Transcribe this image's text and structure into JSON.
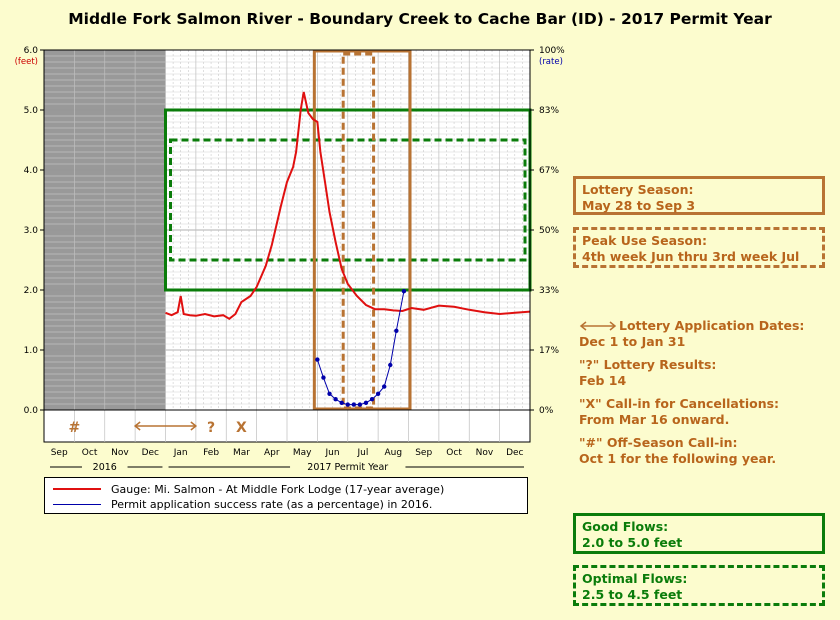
{
  "title": "Middle Fork Salmon River - Boundary Creek to Cache Bar (ID) - 2017 Permit Year",
  "colors": {
    "gauge": "#e01010",
    "success": "#0000aa",
    "orange": "#b87333",
    "green": "#0a7c0a",
    "offseason": "#999999"
  },
  "chart_data": {
    "type": "line",
    "left_axis": {
      "label_unit": "(feet)",
      "ticks": [
        "6.0",
        "5.0",
        "4.0",
        "3.0",
        "2.0",
        "1.0",
        "0.0"
      ],
      "ylim": [
        0,
        6
      ]
    },
    "right_axis": {
      "label_unit": "(rate)",
      "ticks": [
        "100%",
        "83%",
        "67%",
        "50%",
        "33%",
        "17%",
        "0%"
      ],
      "ylim": [
        0,
        100
      ]
    },
    "x_months": [
      "Sep",
      "Oct",
      "Nov",
      "Dec",
      "Jan",
      "Feb",
      "Mar",
      "Apr",
      "May",
      "Jun",
      "Jul",
      "Aug",
      "Sep",
      "Oct",
      "Nov",
      "Dec"
    ],
    "year_labels": {
      "prev": "2016",
      "current": "2017 Permit Year"
    },
    "markers": {
      "offseason": "#",
      "results": "?",
      "callin": "X"
    },
    "gauge_series": {
      "name": "Gauge: Mi. Salmon - At Middle Fork Lodge (17-year average)",
      "x_month": [
        4.0,
        4.2,
        4.4,
        4.5,
        4.6,
        4.8,
        5.0,
        5.3,
        5.6,
        5.9,
        6.1,
        6.3,
        6.5,
        6.8,
        7.0,
        7.3,
        7.5,
        7.8,
        8.0,
        8.2,
        8.3,
        8.45,
        8.55,
        8.7,
        8.85,
        9.0,
        9.1,
        9.25,
        9.4,
        9.6,
        9.8,
        10.0,
        10.3,
        10.6,
        10.9,
        11.2,
        11.5,
        11.8,
        12.1,
        12.5,
        13.0,
        13.5,
        14.0,
        14.5,
        15.0,
        15.5,
        16.0
      ],
      "feet": [
        1.62,
        1.58,
        1.63,
        1.9,
        1.6,
        1.58,
        1.57,
        1.6,
        1.56,
        1.58,
        1.52,
        1.6,
        1.8,
        1.9,
        2.05,
        2.4,
        2.75,
        3.4,
        3.8,
        4.05,
        4.3,
        5.0,
        5.3,
        4.95,
        4.85,
        4.8,
        4.3,
        3.8,
        3.3,
        2.8,
        2.35,
        2.1,
        1.9,
        1.75,
        1.68,
        1.68,
        1.66,
        1.65,
        1.7,
        1.67,
        1.74,
        1.72,
        1.67,
        1.63,
        1.6,
        1.62,
        1.64
      ]
    },
    "success_series": {
      "name": "Permit application success rate (as a percentage) in 2016.",
      "x_month": [
        9.0,
        9.2,
        9.4,
        9.6,
        9.8,
        10.0,
        10.2,
        10.4,
        10.6,
        10.8,
        11.0,
        11.2,
        11.4,
        11.6,
        11.85
      ],
      "percent": [
        14,
        9,
        4.5,
        3,
        2,
        1.5,
        1.5,
        1.5,
        2,
        3,
        4.5,
        6.5,
        12.5,
        22,
        33
      ]
    },
    "regions": {
      "offseason": {
        "from": 0,
        "to": 4
      },
      "lottery_season": {
        "from": 8.9,
        "to": 12.05
      },
      "peak_use": {
        "from": 9.85,
        "to": 10.85
      },
      "good_flows": {
        "from": 2.0,
        "to": 5.0
      },
      "optimal_flows": {
        "from": 2.5,
        "to": 4.5
      }
    }
  },
  "legend": {
    "gauge": "Gauge: Mi. Salmon - At Middle Fork Lodge (17-year average)",
    "success": "Permit application success rate (as a percentage) in 2016."
  },
  "info": {
    "lottery_title": "Lottery Season:",
    "lottery_dates": "May 28 to Sep 3",
    "peak_title": "Peak Use Season:",
    "peak_dates": "4th week Jun thru 3rd week Jul",
    "app_title": "Lottery Application Dates:",
    "app_dates": "Dec 1 to Jan 31",
    "results_title": "\"?\" Lottery Results:",
    "results_dates": "Feb 14",
    "callin_title": "\"X\" Call-in for Cancellations:",
    "callin_dates": "From Mar 16 onward.",
    "offseason_title": "\"#\" Off-Season Call-in:",
    "offseason_dates": "Oct 1 for the following year.",
    "good_title": "Good Flows:",
    "good_range": "2.0 to 5.0 feet",
    "optimal_title": "Optimal Flows:",
    "optimal_range": "2.5 to 4.5 feet"
  }
}
